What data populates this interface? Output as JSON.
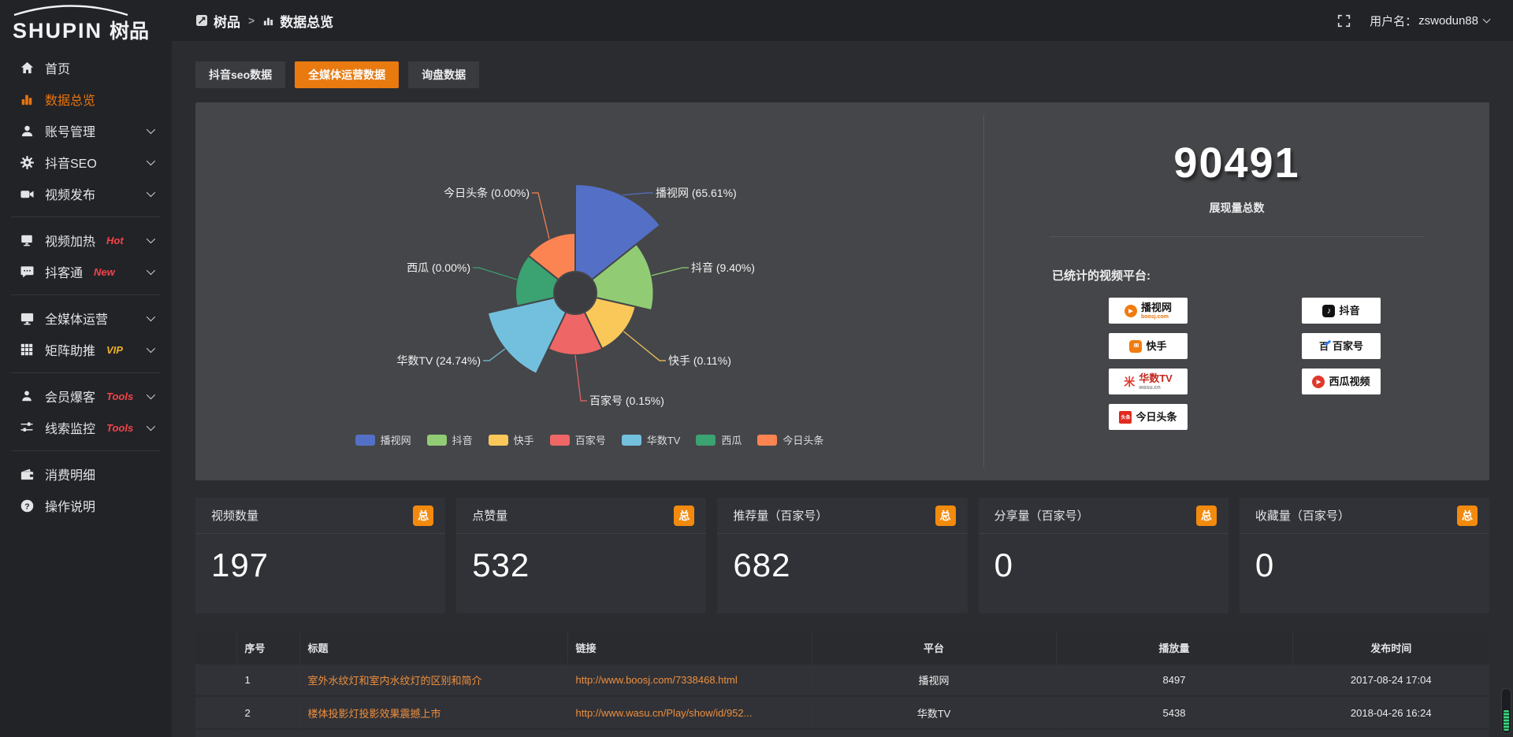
{
  "brand": {
    "name_en": "SHUPIN",
    "name_cn": "树品"
  },
  "topbar": {
    "breadcrumb_root": "树品",
    "breadcrumb_sep": ">",
    "breadcrumb_current": "数据总览",
    "username_label": "用户名：",
    "username": "zswodun88"
  },
  "sidebar": {
    "items": [
      {
        "label": "首页"
      },
      {
        "label": "数据总览"
      },
      {
        "label": "账号管理"
      },
      {
        "label": "抖音SEO"
      },
      {
        "label": "视频发布"
      },
      {
        "label": "视频加热",
        "badge": "Hot"
      },
      {
        "label": "抖客通",
        "badge": "New"
      },
      {
        "label": "全媒体运营"
      },
      {
        "label": "矩阵助推",
        "badge": "VIP"
      },
      {
        "label": "会员爆客",
        "badge": "Tools"
      },
      {
        "label": "线索监控",
        "badge": "Tools"
      },
      {
        "label": "消费明细"
      },
      {
        "label": "操作说明"
      }
    ]
  },
  "tabs": [
    {
      "label": "抖音seo数据"
    },
    {
      "label": "全媒体运营数据"
    },
    {
      "label": "询盘数据"
    }
  ],
  "chart_data": {
    "type": "pie",
    "variant": "nightingale-rose",
    "categories": [
      "播视网",
      "抖音",
      "快手",
      "百家号",
      "华数TV",
      "西瓜",
      "今日头条"
    ],
    "values_percent": [
      65.61,
      9.4,
      0.11,
      0.15,
      24.74,
      0.0,
      0.0
    ],
    "slice_labels": [
      "播视网 (65.61%)",
      "抖音 (9.40%)",
      "快手 (0.11%)",
      "百家号 (0.15%)",
      "华数TV (24.74%)",
      "西瓜 (0.00%)",
      "今日头条 (0.00%)"
    ],
    "colors": [
      "#5470c6",
      "#91cc75",
      "#fac858",
      "#ee6666",
      "#73c0de",
      "#3ba272",
      "#fc8452"
    ],
    "legend": [
      "播视网",
      "抖音",
      "快手",
      "百家号",
      "华数TV",
      "西瓜",
      "今日头条"
    ],
    "legend_position": "bottom"
  },
  "summary": {
    "total_value": "90491",
    "total_label": "展现量总数",
    "platforms_title": "已统计的视频平台:",
    "platforms_left": [
      {
        "name": "播视网",
        "domain": "boosj.com"
      },
      {
        "name": "快手"
      },
      {
        "name": "华数TV",
        "domain": "wasu.cn"
      },
      {
        "name": "今日头条",
        "tag": "头条"
      }
    ],
    "platforms_right": [
      {
        "name": "抖音"
      },
      {
        "name": "百家号"
      },
      {
        "name": "西瓜视频"
      }
    ]
  },
  "stat_cards": [
    {
      "title": "视频数量",
      "badge": "总",
      "value": "197"
    },
    {
      "title": "点赞量",
      "badge": "总",
      "value": "532"
    },
    {
      "title": "推荐量（百家号）",
      "badge": "总",
      "value": "682"
    },
    {
      "title": "分享量（百家号）",
      "badge": "总",
      "value": "0"
    },
    {
      "title": "收藏量（百家号）",
      "badge": "总",
      "value": "0"
    }
  ],
  "table": {
    "headers": [
      "",
      "序号",
      "标题",
      "链接",
      "平台",
      "播放量",
      "发布时间"
    ],
    "rows": [
      {
        "no": "1",
        "title": "室外水纹灯和室内水纹灯的区别和简介",
        "link": "http://www.boosj.com/7338468.html",
        "platform": "播视网",
        "views": "8497",
        "time": "2017-08-24 17:04"
      },
      {
        "no": "2",
        "title": "楼体投影灯投影效果震撼上市",
        "link": "http://www.wasu.cn/Play/show/id/952...",
        "platform": "华数TV",
        "views": "5438",
        "time": "2018-04-26 16:24"
      }
    ]
  }
}
